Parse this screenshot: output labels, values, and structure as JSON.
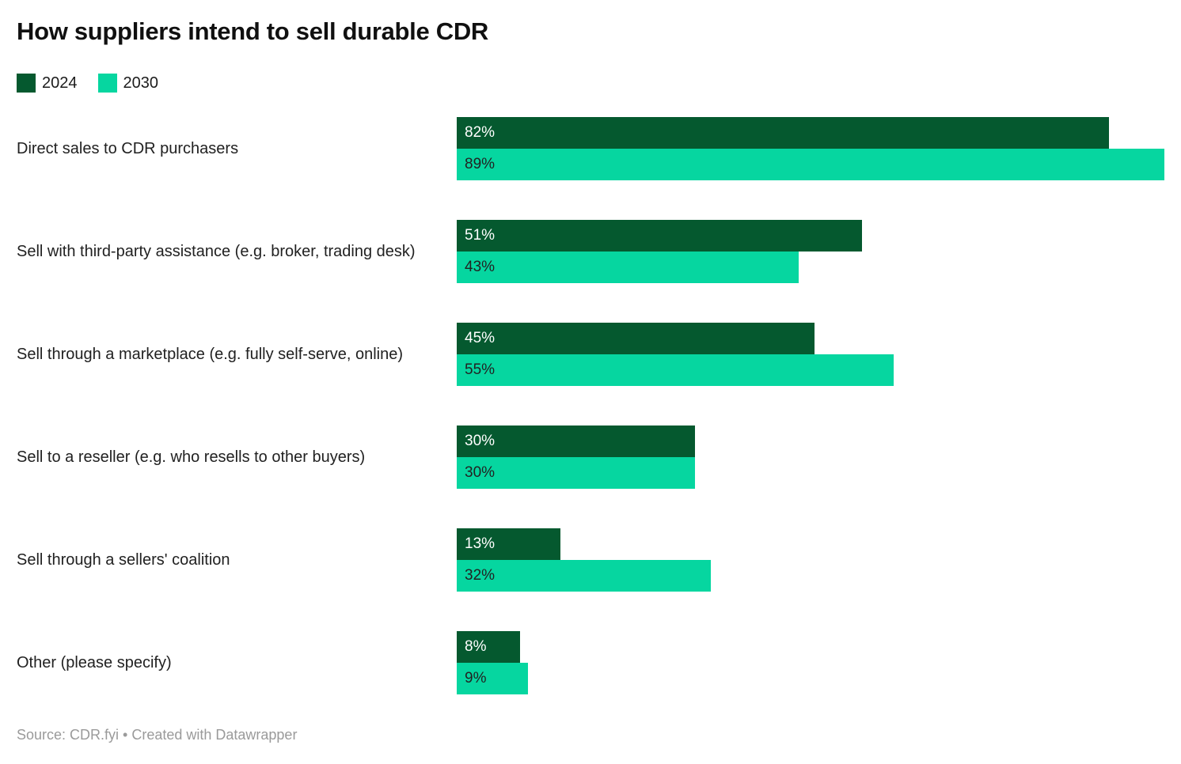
{
  "chart_data": {
    "type": "bar",
    "orientation": "horizontal",
    "title": "How suppliers intend to sell durable CDR",
    "categories": [
      "Direct sales to CDR purchasers",
      "Sell with third-party assistance (e.g. broker, trading desk)",
      "Sell through a marketplace (e.g. fully self-serve, online)",
      "Sell to a reseller (e.g. who resells to other buyers)",
      "Sell through a sellers' coalition",
      "Other (please specify)"
    ],
    "series": [
      {
        "name": "2024",
        "color": "#05592f",
        "text_color": "#ffffff",
        "values": [
          82,
          51,
          45,
          30,
          13,
          8
        ],
        "labels": [
          "82%",
          "51%",
          "45%",
          "30%",
          "13%",
          "8%"
        ]
      },
      {
        "name": "2030",
        "color": "#06d6a0",
        "text_color": "#222222",
        "values": [
          89,
          43,
          55,
          30,
          32,
          9
        ],
        "labels": [
          "89%",
          "43%",
          "55%",
          "30%",
          "32%",
          "9%"
        ]
      }
    ],
    "xlim": [
      0,
      90
    ],
    "value_suffix": "%",
    "grid": false,
    "legend_position": "top-left",
    "value_labels_inside": true
  },
  "footer": {
    "source_line": "Source: CDR.fyi • Created with Datawrapper"
  }
}
